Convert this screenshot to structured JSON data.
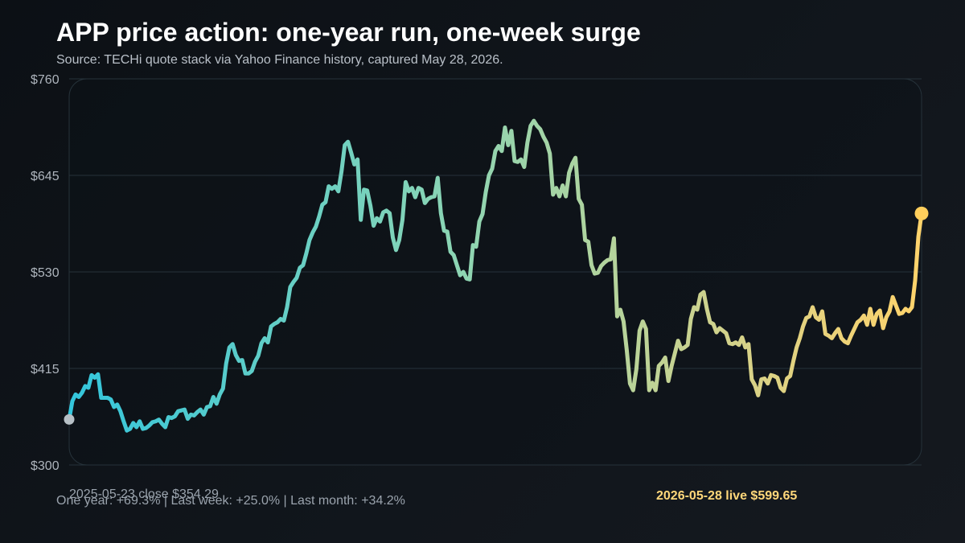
{
  "chart_data": {
    "type": "line",
    "title": "APP price action: one-year run, one-week surge",
    "subtitle": "Source: TECHi quote stack via Yahoo Finance history, captured May 28, 2026.",
    "xlabel": "",
    "ylabel": "",
    "x_range": [
      "2025-05-23",
      "2026-05-28"
    ],
    "ylim": [
      300,
      760
    ],
    "y_ticks": [
      300,
      415,
      530,
      645,
      760
    ],
    "y_tick_labels": [
      "$300",
      "$415",
      "$530",
      "$645",
      "$760"
    ],
    "grid": true,
    "series": [
      {
        "values": [
          354.29,
          376,
          384,
          381,
          386,
          394,
          392,
          407,
          404,
          408,
          380,
          380,
          380,
          378,
          369,
          372,
          364,
          352,
          341,
          343,
          350,
          345,
          352,
          343,
          344,
          347,
          351,
          352,
          354,
          349,
          345,
          357,
          356,
          358,
          364,
          365,
          366,
          355,
          360,
          359,
          363,
          366,
          360,
          369,
          370,
          381,
          373,
          384,
          391,
          421,
          440,
          444,
          431,
          424,
          425,
          409,
          409,
          412,
          423,
          430,
          445,
          451,
          446,
          465,
          468,
          470,
          474,
          472,
          488,
          512,
          518,
          523,
          535,
          538,
          552,
          568,
          577,
          584,
          596,
          610,
          613,
          632,
          629,
          632,
          626,
          650,
          681,
          685,
          672,
          658,
          664,
          592,
          628,
          627,
          609,
          585,
          594,
          590,
          601,
          603,
          600,
          571,
          556,
          568,
          592,
          637,
          626,
          630,
          619,
          630,
          628,
          612,
          617,
          619,
          620,
          642,
          600,
          579,
          578,
          554,
          550,
          538,
          526,
          530,
          522,
          521,
          562,
          560,
          590,
          599,
          625,
          645,
          653,
          674,
          680,
          674,
          702,
          681,
          698,
          662,
          661,
          664,
          655,
          684,
          704,
          710,
          704,
          700,
          691,
          684,
          671,
          622,
          630,
          620,
          633,
          620,
          648,
          659,
          666,
          617,
          610,
          568,
          566,
          538,
          528,
          529,
          537,
          541,
          544,
          545,
          570,
          477,
          485,
          471,
          437,
          397,
          389,
          414,
          460,
          471,
          462,
          389,
          398,
          389,
          418,
          422,
          428,
          400,
          418,
          433,
          448,
          438,
          440,
          443,
          474,
          488,
          485,
          503,
          506,
          486,
          470,
          468,
          458,
          463,
          460,
          457,
          445,
          444,
          446,
          443,
          452,
          440,
          444,
          402,
          395,
          383,
          402,
          403,
          397,
          407,
          406,
          404,
          392,
          388,
          403,
          406,
          424,
          440,
          451,
          465,
          475,
          477,
          488,
          476,
          473,
          483,
          456,
          454,
          451,
          457,
          462,
          451,
          447,
          445,
          454,
          462,
          470,
          473,
          478,
          467,
          486,
          467,
          480,
          484,
          463,
          476,
          483,
          500,
          490,
          480,
          481,
          486,
          483,
          488,
          520,
          572,
          599.65
        ]
      }
    ],
    "annotations": {
      "start": "2025-05-23 close $354.29",
      "end": "2026-05-28 live $599.65",
      "stats": "One year: +69.3% | Last week: +25.0% | Last month: +34.2%"
    },
    "colors": {
      "line_start": "#33c6dc",
      "line_mid": "#8bd5b4",
      "line_late": "#d4d28a",
      "line_end": "#ffd36b",
      "start_dot": "#b7c0c6",
      "end_dot": "#ffcf5c",
      "grid": "#26323a",
      "plot_border": "#26323a"
    }
  }
}
